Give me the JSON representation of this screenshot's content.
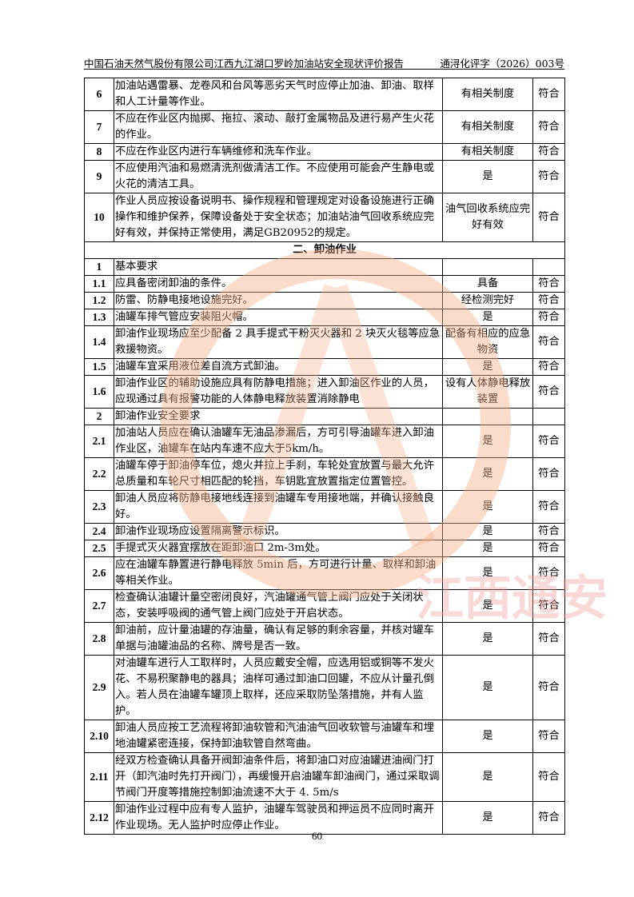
{
  "header": {
    "title": "中国石油天然气股份有限公司江西九江湖口罗岭加油站安全现状评价报告",
    "doc_no": "通浔化评字（2026）003号"
  },
  "rows": [
    {
      "num": "6",
      "text": "加油站遇雷暴、龙卷风和台风等恶劣天气时应停止加油、卸油、取样和人工计量等作业。",
      "result": "有相关制度",
      "conclusion": "符合"
    },
    {
      "num": "7",
      "text": "不应在作业区内抛掷、拖拉、滚动、敲打金属物品及进行易产生火花的作业。",
      "result": "有相关制度",
      "conclusion": "符合"
    },
    {
      "num": "8",
      "text": "不应在作业区内进行车辆维修和洗车作业。",
      "result": "有相关制度",
      "conclusion": "符合"
    },
    {
      "num": "9",
      "text": "不应使用汽油和易燃清洗剂做清洁工作。不应使用可能会产生静电或火花的清洁工具。",
      "result": "是",
      "conclusion": "符合"
    },
    {
      "num": "10",
      "text": "作业人员应按设备说明书、操作规程和管理规定对设备设施进行正确操作和维护保养，保障设备处于安全状态；加油站油气回收系统应完好有效，并保持正常使用，满足GB20952的规定。",
      "result": "油气回收系统应完好有效",
      "conclusion": "符合"
    },
    {
      "section": "二、卸油作业"
    },
    {
      "num": "1",
      "text": "基本要求",
      "result": "",
      "conclusion": ""
    },
    {
      "num": "1.1",
      "text": "应具备密闭卸油的条件。",
      "result": "具备",
      "conclusion": "符合"
    },
    {
      "num": "1.2",
      "text": "防雷、防静电接地设施完好。",
      "result": "经检测完好",
      "conclusion": "符合"
    },
    {
      "num": "1.3",
      "text": "油罐车排气管应安装阻火帽。",
      "result": "是",
      "conclusion": "符合"
    },
    {
      "num": "1.4",
      "text": "卸油作业现场应至少配备 2 具手提式干粉灭火器和 2 块灭火毯等应急救援物资。",
      "result": "配备有相应的应急物资",
      "conclusion": "符合"
    },
    {
      "num": "1.5",
      "text": "油罐车宜采用液位差自流方式卸油。",
      "result": "是",
      "conclusion": "符合"
    },
    {
      "num": "1.6",
      "text": "卸油作业区的辅助设施应具有防静电措施；进入卸油区作业的人员，应现通过具有报警功能的人体静电释放装置消除静电",
      "result": "设有人体静电释放装置",
      "conclusion": "符合"
    },
    {
      "num": "2",
      "text": "卸油作业安全要求",
      "result": "",
      "conclusion": ""
    },
    {
      "num": "2.1",
      "text": "加油站人员应在确认油罐车无油品渗漏后，方可引导油罐车进入卸油作业区，油罐车在站内车速不应大于5km/h。",
      "result": "是",
      "conclusion": "符合"
    },
    {
      "num": "2.2",
      "text": "油罐车停于卸油停车位，熄火并拉上手刹，车轮处宜放置与最大允许总质量和车轮尺寸相匹配的轮挡，车钥匙宜放置指定位置管控。",
      "result": "是",
      "conclusion": "符合"
    },
    {
      "num": "2.3",
      "text": "卸油人员应将防静电接地线连接到油罐车专用接地端，并确认接触良好。",
      "result": "是",
      "conclusion": "符合"
    },
    {
      "num": "2.4",
      "text": "卸油作业现场应设置隔离警示标识。",
      "result": "是",
      "conclusion": "符合"
    },
    {
      "num": "2.5",
      "text": "手提式灭火器宜摆放在距卸油口 2m-3m处。",
      "result": "是",
      "conclusion": "符合"
    },
    {
      "num": "2.6",
      "text": "应在油罐车静置进行静电释放 5min 后，方可进行计量、取样和卸油等相关作业。",
      "result": "是",
      "conclusion": "符合"
    },
    {
      "num": "2.7",
      "text": "检查确认油罐计量空密闭良好，汽油罐通气管上阀门应处于关闭状态，安装呼吸阀的通气管上阀门应处于开启状态。",
      "result": "是",
      "conclusion": "符合"
    },
    {
      "num": "2.8",
      "text": "卸油前，应计量油罐的存油量，确认有足够的剩余容量，并核对罐车单据与油罐油品的名称、牌号是否一致。",
      "result": "是",
      "conclusion": "符合"
    },
    {
      "num": "2.9",
      "text": "对油罐车进行人工取样时，人员应戴安全帽，应选用铝或铜等不发火花、不易积聚静电的器具；油样可通过卸油口回罐，不应从计量孔倒入。若人员在油罐车罐顶上取样，还应采取防坠落措施，并有人监护。",
      "result": "是",
      "conclusion": "符合"
    },
    {
      "num": "2.10",
      "text": "卸油人员应按工艺流程将卸油软管和汽油油气回收软管与油罐车和埋地油罐紧密连接，保持卸油软管自然弯曲。",
      "result": "是",
      "conclusion": "符合"
    },
    {
      "num": "2.11",
      "text": "经双方检查确认具备开阀卸油条件后，将卸油口对应油罐进油阀门打开（卸汽油时先打开阀门），再缓慢开启油罐车卸油阀门，通过采取调节阀门开度等措施控制卸油流速不大于 4. 5m/s",
      "result": "是",
      "conclusion": "符合"
    },
    {
      "num": "2.12",
      "text": "卸油作业过程中应有专人监护，油罐车驾驶员和押运员不应同时离开作业现场。无人监护时应停止作业。",
      "result": "是",
      "conclusion": "符合"
    }
  ],
  "page_number": "60",
  "watermark": {
    "text": "江西通安",
    "colors": [
      "#f6b08a",
      "#f2a0a0",
      "#9fd8ec"
    ]
  }
}
